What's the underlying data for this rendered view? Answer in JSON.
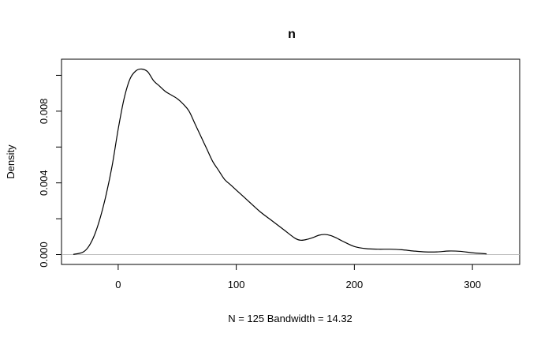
{
  "chart_data": {
    "type": "line",
    "title": "n",
    "xlabel": "N = 125   Bandwidth = 14.32",
    "ylabel": "Density",
    "xlim": [
      -48,
      340
    ],
    "ylim": [
      -0.00055,
      0.0109
    ],
    "x_ticks": [
      0,
      100,
      200,
      300
    ],
    "x_tick_labels": [
      "0",
      "100",
      "200",
      "300"
    ],
    "y_ticks": [
      0,
      0.002,
      0.004,
      0.006,
      0.008,
      0.01
    ],
    "y_tick_labels": [
      "0.000",
      "",
      "0.004",
      "",
      "0.008",
      ""
    ],
    "baseline": 0,
    "grid": false,
    "series": [
      {
        "x": [
          -38,
          -30,
          -25,
          -20,
          -15,
          -10,
          -5,
          0,
          5,
          10,
          15,
          20,
          25,
          30,
          35,
          40,
          45,
          50,
          55,
          60,
          65,
          70,
          75,
          80,
          85,
          90,
          95,
          100,
          110,
          120,
          130,
          140,
          150,
          155,
          160,
          165,
          170,
          175,
          180,
          185,
          190,
          200,
          210,
          220,
          230,
          240,
          250,
          260,
          270,
          280,
          290,
          300,
          312
        ],
        "y": [
          1e-05,
          0.00013,
          0.00045,
          0.0011,
          0.0021,
          0.0034,
          0.005,
          0.007,
          0.0087,
          0.0098,
          0.01025,
          0.01035,
          0.0102,
          0.0097,
          0.0094,
          0.0091,
          0.0089,
          0.0087,
          0.0084,
          0.008,
          0.0073,
          0.0066,
          0.0059,
          0.0052,
          0.0047,
          0.0042,
          0.0039,
          0.0036,
          0.003,
          0.0024,
          0.0019,
          0.0014,
          0.0009,
          0.0008,
          0.00085,
          0.00095,
          0.00108,
          0.00112,
          0.00106,
          0.00092,
          0.00075,
          0.00045,
          0.00033,
          0.0003,
          0.0003,
          0.00027,
          0.0002,
          0.00015,
          0.00015,
          0.0002,
          0.00018,
          0.0001,
          4e-05
        ]
      }
    ]
  }
}
